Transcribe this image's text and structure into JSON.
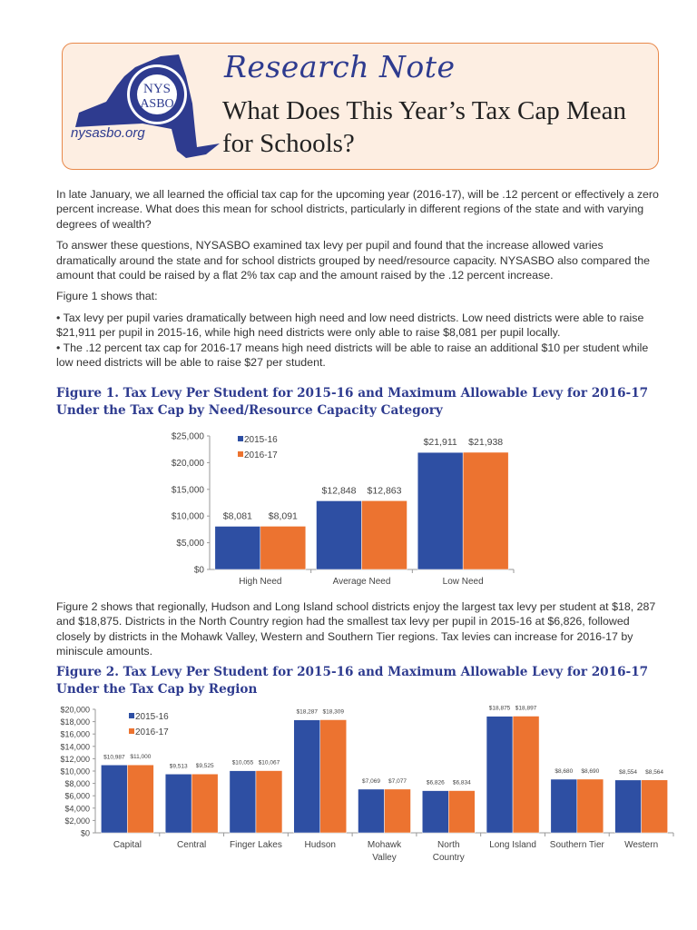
{
  "header": {
    "website": "nysasbo.org",
    "logo_text": [
      "NYS",
      "ASBO"
    ],
    "kicker": "Research Note",
    "title": "What Does This Year’s Tax Cap Mean for Schools?"
  },
  "paragraphs": {
    "p1": "In late January, we all learned the official tax cap for the upcoming year (2016-17), will be .12 percent or effectively a zero percent increase. What does this mean for school districts, particularly in different regions of the state and with varying degrees of wealth?",
    "p2": "To answer these questions, NYSASBO examined tax levy per pupil and found that the increase allowed varies dramatically around the state and for school districts grouped by need/resource capacity. NYSASBO also compared the amount that could be raised by a flat 2% tax cap and the amount raised by the .12 percent increase.",
    "p3": "Figure 1 shows that:",
    "b1": "•  Tax levy per pupil varies dramatically between high need and low need districts. Low need districts were able to raise $21,911 per pupil in 2015-16, while high need districts were only able to raise $8,081 per pupil locally.",
    "b2": "•  The .12 percent tax cap for 2016-17 means high need districts will be able to raise an additional $10 per student while low need districts will be able to raise $27 per student.",
    "p4": "Figure 2 shows that regionally, Hudson and Long Island school districts enjoy the largest tax levy per student at $18, 287 and $18,875. Districts in the North Country region had the smallest tax levy per pupil in 2015-16 at $6,826, followed closely by districts in the Mohawk Valley, Western and Southern Tier regions. Tax levies can increase for 2016-17 by miniscule amounts."
  },
  "figures": {
    "fig1_title": "Figure 1. Tax Levy Per Student for 2015-16 and Maximum Allowable Levy for 2016-17 Under the Tax Cap by Need/Resource Capacity Category",
    "fig2_title": "Figure 2. Tax Levy Per Student for 2015-16 and Maximum Allowable Levy for 2016-17 Under the Tax Cap by Region"
  },
  "colors": {
    "series1": "#2e4fa3",
    "series2": "#ec7330",
    "accent": "#2e3b8f",
    "header_bg": "#fdeee2",
    "header_border": "#e8884a"
  },
  "chart_data": [
    {
      "type": "bar",
      "categories": [
        "High Need",
        "Average Need",
        "Low Need"
      ],
      "series": [
        {
          "name": "2015-16",
          "values": [
            8081,
            12848,
            21911
          ],
          "labels": [
            "$8,081",
            "$12,848",
            "$21,911"
          ]
        },
        {
          "name": "2016-17",
          "values": [
            8091,
            12863,
            21938
          ],
          "labels": [
            "$8,091",
            "$12,863",
            "$21,938"
          ]
        }
      ],
      "yticks": [
        "$0",
        "$5,000",
        "$10,000",
        "$15,000",
        "$20,000",
        "$25,000"
      ],
      "ylim": [
        0,
        25000
      ],
      "legend": "top-left",
      "grid": false
    },
    {
      "type": "bar",
      "categories": [
        "Capital",
        "Central",
        "Finger Lakes",
        "Hudson",
        "Mohawk Valley",
        "North Country",
        "Long Island",
        "Southern Tier",
        "Western"
      ],
      "series": [
        {
          "name": "2015-16",
          "values": [
            10987,
            9513,
            10055,
            18287,
            7069,
            6826,
            18875,
            8680,
            8554
          ],
          "labels": [
            "$10,987",
            "$9,513",
            "$10,055",
            "$18,287",
            "$7,069",
            "$6,826",
            "$18,875",
            "$8,680",
            "$8,554"
          ]
        },
        {
          "name": "2016-17",
          "values": [
            11000,
            9525,
            10067,
            18309,
            7077,
            6834,
            18897,
            8690,
            8564
          ],
          "labels": [
            "$11,000",
            "$9,525",
            "$10,067",
            "$18,309",
            "$7,077",
            "$6,834",
            "$18,897",
            "$8,690",
            "$8,564"
          ]
        }
      ],
      "yticks": [
        "$0",
        "$2,000",
        "$4,000",
        "$6,000",
        "$8,000",
        "$10,000",
        "$12,000",
        "$14,000",
        "$16,000",
        "$18,000",
        "$20,000"
      ],
      "ylim": [
        0,
        20000
      ],
      "legend": "top-left",
      "grid": false
    }
  ]
}
